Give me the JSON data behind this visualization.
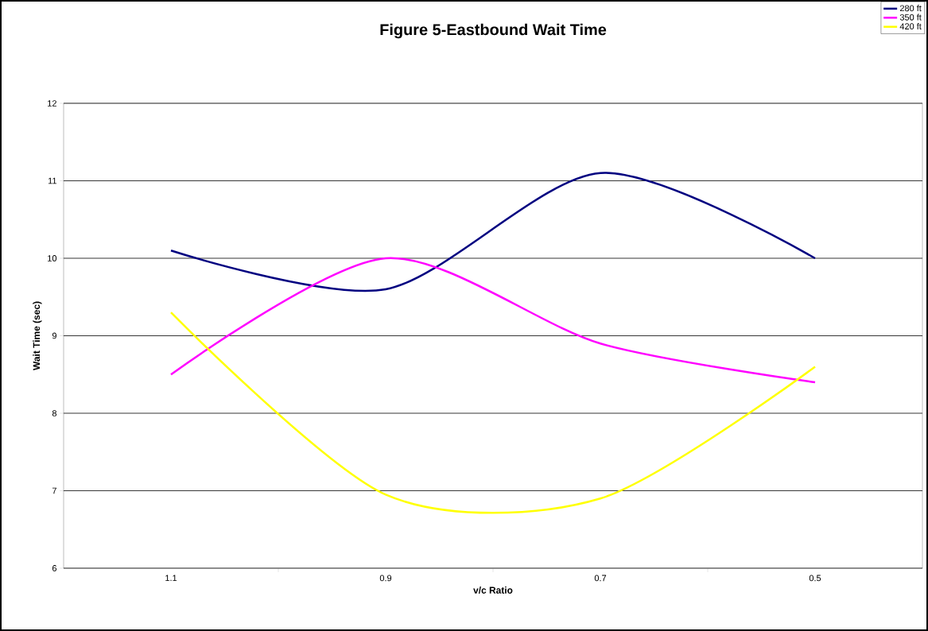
{
  "chart_data": {
    "type": "line",
    "title": "Figure 5-Eastbound Wait Time",
    "xlabel": "v/c Ratio",
    "ylabel": "Wait Time (sec)",
    "categories": [
      "1.1",
      "0.9",
      "0.7",
      "0.5"
    ],
    "series": [
      {
        "name": "280 ft",
        "color": "#000080",
        "values": [
          10.1,
          9.6,
          11.1,
          10.0
        ]
      },
      {
        "name": "350 ft",
        "color": "#ff00ff",
        "values": [
          8.5,
          10.0,
          8.9,
          8.4
        ]
      },
      {
        "name": "420 ft",
        "color": "#ffff00",
        "values": [
          9.3,
          6.95,
          6.9,
          8.6
        ]
      }
    ],
    "ylim": [
      6,
      12
    ],
    "yticks": [
      6,
      7,
      8,
      9,
      10,
      11,
      12
    ],
    "grid": "y",
    "legend": "top right",
    "marker": "none",
    "line_style": "solid"
  }
}
